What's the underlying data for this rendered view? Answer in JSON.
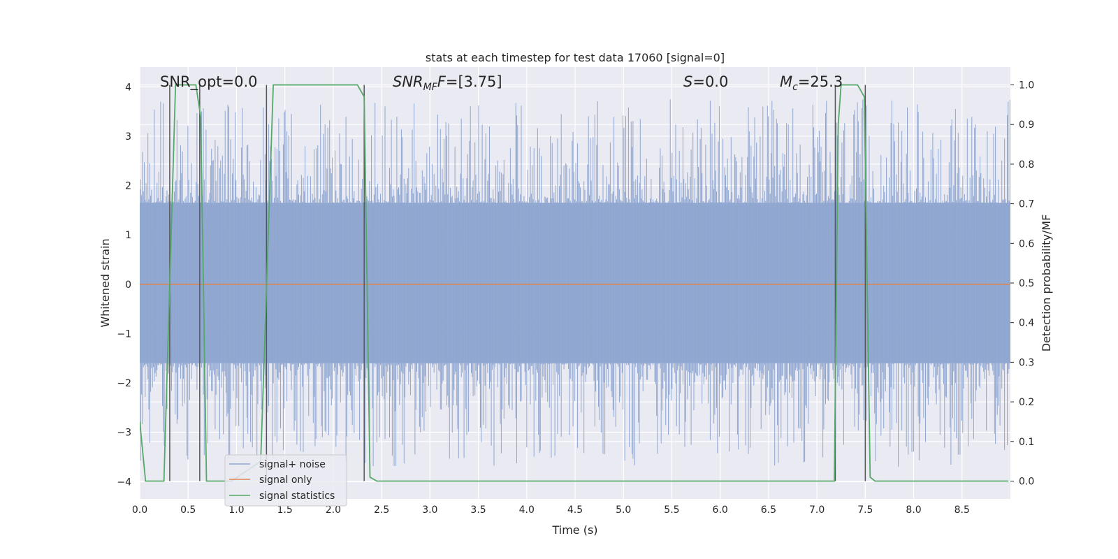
{
  "chart_data": {
    "type": "line",
    "title": "stats at each timestep for test data 17060 [signal=0]",
    "xlabel": "Time (s)",
    "ylabel": "Whitened strain",
    "y2label": "Detection probability/MF",
    "xlim": [
      0.0,
      9.0
    ],
    "ylim": [
      -4.35,
      4.4
    ],
    "y2lim": [
      -0.045,
      1.045
    ],
    "xticks": [
      "0.0",
      "0.5",
      "1.0",
      "1.5",
      "2.0",
      "2.5",
      "3.0",
      "3.5",
      "4.0",
      "4.5",
      "5.0",
      "5.5",
      "6.0",
      "6.5",
      "7.0",
      "7.5",
      "8.0",
      "8.5"
    ],
    "yticks": [
      "4",
      "3",
      "2",
      "1",
      "0",
      "−1",
      "−2",
      "−3",
      "−4"
    ],
    "y2ticks": [
      "1.0",
      "0.9",
      "0.8",
      "0.7",
      "0.6",
      "0.5",
      "0.4",
      "0.3",
      "0.2",
      "0.1",
      "0.0"
    ],
    "grid": true,
    "legend_position": "lower-left",
    "annotations": {
      "snr_opt": "SNR_opt=0.0",
      "snr_mf_main": "SNR",
      "snr_mf_sub": "MF",
      "snr_mf_rest": "=[3.75]",
      "s_main": "S",
      "s_rest": "=0.0",
      "mc_main": "M",
      "mc_sub": "c",
      "mc_rest": "=25.3"
    },
    "noise_envelope": {
      "name": "signal+ noise",
      "color": "#8fa6d0",
      "band_top": 1.65,
      "band_bottom": -1.6,
      "spike_max": 3.75,
      "spike_min": -3.7
    },
    "signal_only": {
      "name": "signal only",
      "color": "#dd8452",
      "value": 0.0
    },
    "signal_statistics": {
      "name": "signal statistics",
      "color": "#55a868",
      "x": [
        0.0,
        0.06,
        0.25,
        0.37,
        0.38,
        0.58,
        0.63,
        0.69,
        0.95,
        1.25,
        1.38,
        1.5,
        2.25,
        2.32,
        2.38,
        2.45,
        7.18,
        7.22,
        7.25,
        7.42,
        7.49,
        7.55,
        7.6,
        8.98
      ],
      "y": [
        0.15,
        0.0,
        0.0,
        1.0,
        1.0,
        1.0,
        0.92,
        0.0,
        0.0,
        0.05,
        1.0,
        1.0,
        1.0,
        0.97,
        0.01,
        0.0,
        0.0,
        0.9,
        1.0,
        1.0,
        0.97,
        0.01,
        0.0,
        0.0
      ]
    },
    "detection_markers": [
      0.31,
      0.62,
      1.31,
      2.32,
      7.19,
      7.5
    ]
  }
}
